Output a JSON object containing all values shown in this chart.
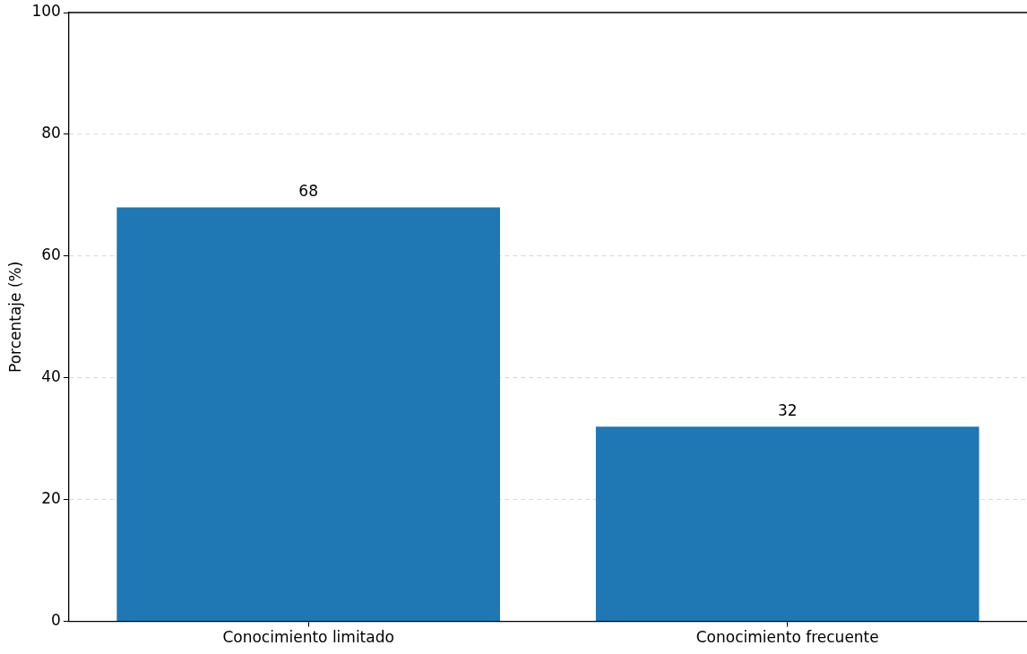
{
  "chart_data": {
    "type": "bar",
    "ylabel": "Porcentaje (%)",
    "categories": [
      "Conocimiento limitado",
      "Conocimiento frecuente"
    ],
    "values": [
      68,
      32
    ],
    "color": "#1f77b4",
    "ylim": [
      0,
      100
    ],
    "yticks": [
      0,
      20,
      40,
      60,
      80,
      100
    ],
    "grid": "y",
    "data_labels": true
  }
}
